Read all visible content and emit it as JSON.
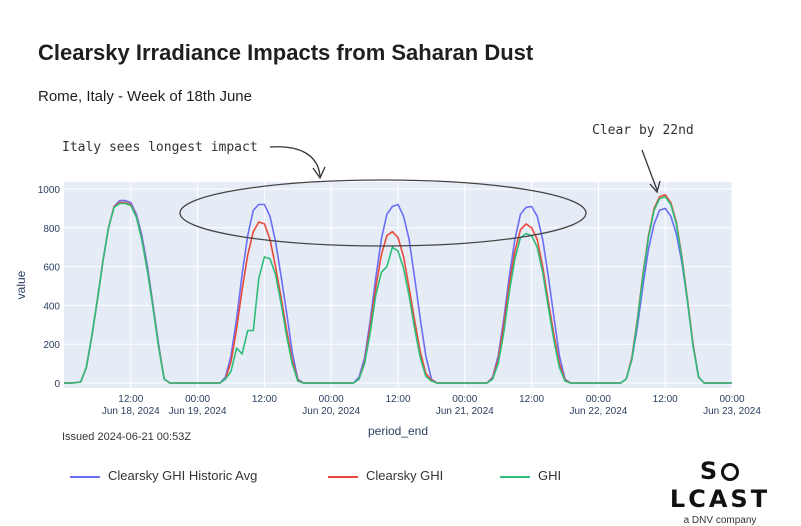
{
  "header": {
    "title": "Clearsky Irradiance Impacts from Saharan Dust",
    "subtitle": "Rome, Italy - Week of 18th June"
  },
  "footer": {
    "issued": "Issued 2024-06-21 00:53Z"
  },
  "logo": {
    "pre": "S",
    "post": "LCAST",
    "tagline": "a DNV company"
  },
  "colors": {
    "historic": "#6b6ef5",
    "clearsky": "#e8493a",
    "ghi": "#2ebd7a",
    "grid": "#ffffff",
    "plot_bg": "#e5ecf6"
  },
  "chart_data": {
    "type": "line",
    "title": "Clearsky Irradiance Impacts from Saharan Dust",
    "xlabel": "period_end",
    "ylabel": "value",
    "ylim": [
      0,
      1000
    ],
    "x_range_hours": [
      0,
      120
    ],
    "yticks": [
      0,
      200,
      400,
      600,
      800,
      1000
    ],
    "xticks": [
      {
        "hour": 12,
        "label": "12:00",
        "sub": "Jun 18, 2024"
      },
      {
        "hour": 24,
        "label": "00:00",
        "sub": "Jun 19, 2024"
      },
      {
        "hour": 36,
        "label": "12:00",
        "sub": ""
      },
      {
        "hour": 48,
        "label": "00:00",
        "sub": "Jun 20, 2024"
      },
      {
        "hour": 60,
        "label": "12:00",
        "sub": ""
      },
      {
        "hour": 72,
        "label": "00:00",
        "sub": "Jun 21, 2024"
      },
      {
        "hour": 84,
        "label": "12:00",
        "sub": ""
      },
      {
        "hour": 96,
        "label": "00:00",
        "sub": "Jun 22, 2024"
      },
      {
        "hour": 108,
        "label": "12:00",
        "sub": ""
      },
      {
        "hour": 120,
        "label": "00:00",
        "sub": "Jun 23, 2024"
      }
    ],
    "x_hours": [
      0,
      1.5,
      3,
      4,
      5,
      6,
      7,
      8,
      9,
      10,
      11,
      12,
      13,
      14,
      15,
      16,
      17,
      18,
      19,
      24,
      28,
      29,
      30,
      31,
      32,
      33,
      34,
      35,
      36,
      37,
      38,
      39,
      40,
      41,
      42,
      43,
      48,
      52,
      53,
      54,
      55,
      56,
      57,
      58,
      59,
      60,
      61,
      62,
      63,
      64,
      65,
      66,
      67,
      72,
      76,
      77,
      78,
      79,
      80,
      81,
      82,
      83,
      84,
      85,
      86,
      87,
      88,
      89,
      90,
      91,
      96,
      100,
      101,
      102,
      103,
      104,
      105,
      106,
      107,
      108,
      109,
      110,
      111,
      112,
      113,
      114,
      115,
      120
    ],
    "series": [
      {
        "name": "Clearsky GHI Historic Avg",
        "values": [
          0,
          0,
          5,
          80,
          240,
          430,
          630,
          800,
          910,
          940,
          940,
          930,
          870,
          760,
          600,
          400,
          200,
          20,
          0,
          0,
          0,
          30,
          140,
          330,
          560,
          760,
          890,
          920,
          920,
          860,
          730,
          550,
          360,
          160,
          20,
          0,
          0,
          0,
          30,
          130,
          320,
          540,
          740,
          870,
          910,
          920,
          860,
          740,
          540,
          330,
          140,
          20,
          0,
          0,
          0,
          30,
          140,
          330,
          550,
          740,
          870,
          905,
          910,
          860,
          740,
          550,
          340,
          140,
          20,
          0,
          0,
          0,
          20,
          120,
          290,
          500,
          690,
          820,
          890,
          900,
          860,
          770,
          620,
          420,
          200,
          30,
          0,
          0
        ]
      },
      {
        "name": "Clearsky GHI",
        "values": [
          0,
          0,
          5,
          80,
          240,
          430,
          630,
          800,
          910,
          930,
          930,
          920,
          860,
          740,
          580,
          390,
          190,
          20,
          0,
          0,
          0,
          20,
          110,
          280,
          480,
          660,
          780,
          830,
          820,
          740,
          600,
          440,
          270,
          120,
          15,
          0,
          0,
          0,
          20,
          110,
          290,
          490,
          660,
          760,
          780,
          750,
          650,
          490,
          320,
          160,
          50,
          15,
          0,
          0,
          0,
          25,
          120,
          300,
          510,
          680,
          790,
          820,
          800,
          740,
          600,
          420,
          250,
          100,
          15,
          0,
          0,
          0,
          20,
          130,
          330,
          560,
          760,
          900,
          960,
          970,
          930,
          830,
          650,
          430,
          200,
          30,
          0,
          0
        ]
      },
      {
        "name": "GHI",
        "values": [
          0,
          0,
          5,
          80,
          240,
          430,
          630,
          800,
          905,
          925,
          925,
          915,
          855,
          735,
          575,
          385,
          185,
          20,
          0,
          0,
          0,
          20,
          60,
          180,
          150,
          270,
          270,
          540,
          650,
          640,
          560,
          410,
          240,
          100,
          10,
          0,
          0,
          0,
          20,
          100,
          260,
          450,
          570,
          600,
          700,
          680,
          590,
          450,
          280,
          130,
          35,
          10,
          0,
          0,
          0,
          20,
          100,
          260,
          470,
          640,
          750,
          770,
          760,
          700,
          570,
          390,
          220,
          80,
          10,
          0,
          0,
          0,
          20,
          120,
          320,
          550,
          750,
          890,
          950,
          960,
          920,
          820,
          640,
          420,
          190,
          30,
          0,
          0
        ]
      }
    ],
    "legend": [
      "Clearsky GHI Historic Avg",
      "Clearsky GHI",
      "GHI"
    ],
    "annotations": [
      {
        "text": "Italy sees longest impact"
      },
      {
        "text": "Clear by 22nd"
      }
    ]
  }
}
